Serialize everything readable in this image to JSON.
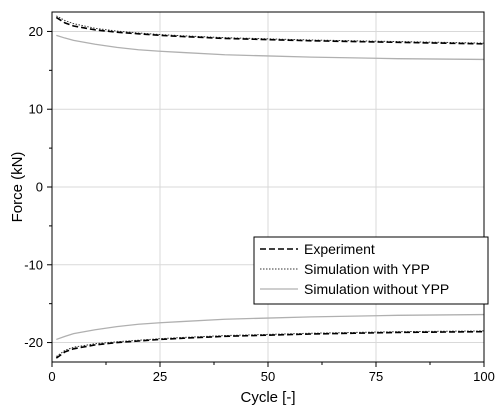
{
  "chart_data": {
    "type": "line",
    "title": "",
    "xlabel": "Cycle [-]",
    "ylabel": "Force (kN)",
    "xlim": [
      0,
      100
    ],
    "ylim": [
      -22.5,
      22.5
    ],
    "x_ticks": [
      0,
      25,
      50,
      75,
      100
    ],
    "y_ticks": [
      -20,
      -10,
      0,
      10,
      20
    ],
    "x_tick_labels": [
      "0",
      "25",
      "50",
      "75",
      "100"
    ],
    "y_tick_labels": [
      "-20",
      "-10",
      "0",
      "10",
      "20"
    ],
    "grid": true,
    "legend_position": "lower-right",
    "x": [
      1,
      3,
      5,
      10,
      15,
      20,
      25,
      30,
      40,
      50,
      60,
      70,
      80,
      90,
      100
    ],
    "series": [
      {
        "name": "Experiment",
        "style": "dashed",
        "color": "#000000",
        "upper": [
          21.8,
          21.1,
          20.7,
          20.2,
          19.9,
          19.7,
          19.5,
          19.35,
          19.1,
          18.95,
          18.8,
          18.7,
          18.6,
          18.5,
          18.4
        ],
        "lower": [
          -22.0,
          -21.2,
          -20.8,
          -20.3,
          -20.0,
          -19.8,
          -19.6,
          -19.45,
          -19.2,
          -19.05,
          -18.9,
          -18.8,
          -18.7,
          -18.65,
          -18.6
        ]
      },
      {
        "name": "Simulation with YPP",
        "style": "dotted",
        "color": "#333333",
        "upper": [
          22.0,
          21.4,
          21.0,
          20.4,
          20.05,
          19.8,
          19.6,
          19.45,
          19.2,
          19.05,
          18.9,
          18.8,
          18.7,
          18.6,
          18.5
        ],
        "lower": [
          -21.8,
          -21.0,
          -20.6,
          -20.15,
          -19.9,
          -19.7,
          -19.5,
          -19.35,
          -19.1,
          -18.95,
          -18.8,
          -18.7,
          -18.6,
          -18.55,
          -18.5
        ]
      },
      {
        "name": "Simulation without YPP",
        "style": "solid",
        "color": "#b0b0b0",
        "upper": [
          19.5,
          19.15,
          18.85,
          18.35,
          17.95,
          17.65,
          17.45,
          17.3,
          17.0,
          16.85,
          16.7,
          16.6,
          16.5,
          16.45,
          16.4
        ],
        "lower": [
          -19.6,
          -19.2,
          -18.85,
          -18.35,
          -17.95,
          -17.65,
          -17.45,
          -17.3,
          -17.0,
          -16.85,
          -16.7,
          -16.6,
          -16.5,
          -16.45,
          -16.4
        ]
      }
    ]
  }
}
